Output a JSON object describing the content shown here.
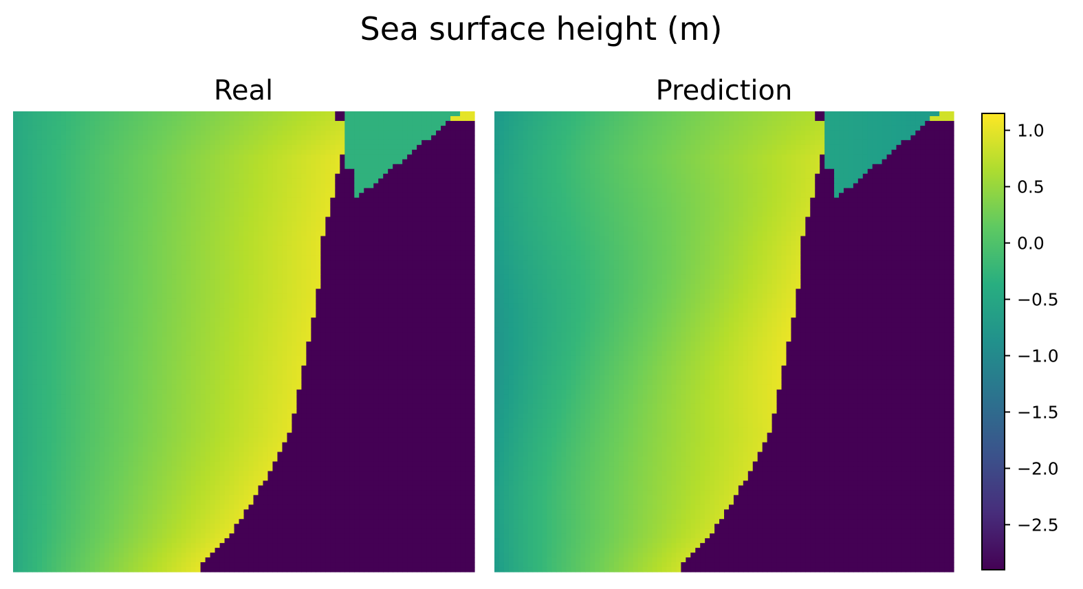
{
  "figure": {
    "title": "Sea surface height (m)"
  },
  "chart_data": [
    {
      "type": "heatmap",
      "title": "Real",
      "xlabel": "",
      "ylabel": "",
      "axes_visible": false,
      "colormap": "viridis",
      "grid": false,
      "value_range": [
        -2.9,
        1.15
      ],
      "land_value": -2.9,
      "field": {
        "offshore_value": -0.5,
        "nearshore_value": 1.0,
        "northeast_basin_value": -0.3
      }
    },
    {
      "type": "heatmap",
      "title": "Prediction",
      "xlabel": "",
      "ylabel": "",
      "axes_visible": false,
      "colormap": "viridis",
      "grid": false,
      "value_range": [
        -2.9,
        1.15
      ],
      "land_value": -2.9,
      "field": {
        "offshore_value": -0.75,
        "nearshore_value": 0.95,
        "northeast_basin_value": -0.7
      }
    }
  ],
  "colorbar": {
    "colormap": "viridis",
    "range": [
      -2.9,
      1.15
    ],
    "ticks": [
      {
        "value": 1.0,
        "label": "1.0"
      },
      {
        "value": 0.5,
        "label": "0.5"
      },
      {
        "value": 0.0,
        "label": "0.0"
      },
      {
        "value": -0.5,
        "label": "−0.5"
      },
      {
        "value": -1.0,
        "label": "−1.0"
      },
      {
        "value": -1.5,
        "label": "−1.5"
      },
      {
        "value": -2.0,
        "label": "−2.0"
      },
      {
        "value": -2.5,
        "label": "−2.5"
      }
    ]
  }
}
